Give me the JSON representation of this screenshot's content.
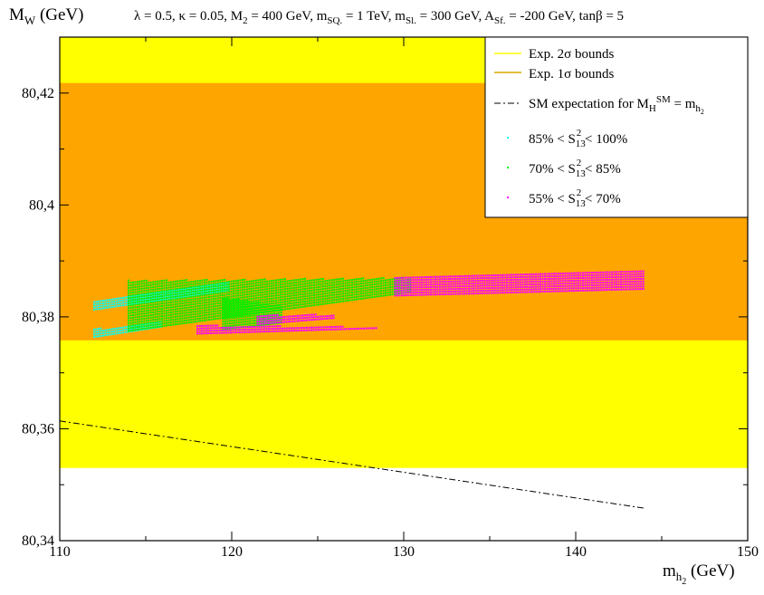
{
  "chart_data": {
    "type": "scatter",
    "title": "λ = 0.5, κ = 0.05, M₂ = 400 GeV, m_SQ. = 1 TeV, m_Sl. = 300 GeV, A_Sf. = -200 GeV, tanβ = 5",
    "title_parts": {
      "p1": "λ = 0.5, κ = 0.05, M",
      "s1": "2",
      "p2": " = 400 GeV, m",
      "s2": "SQ.",
      "p3": " = 1 TeV, m",
      "s3": "Sl.",
      "p4": " = 300 GeV, A",
      "s4": "Sf.",
      "p5": " = -200 GeV, tanβ = 5"
    },
    "xlabel": {
      "main": "m",
      "sub": "h",
      "subsub": "2",
      "unit": " (GeV)"
    },
    "ylabel": {
      "main": "M",
      "sub": "W",
      "unit": " (GeV)"
    },
    "xlim": [
      110,
      150
    ],
    "ylim": [
      80.34,
      80.43
    ],
    "xticks": [
      110,
      120,
      130,
      140,
      150
    ],
    "xtick_labels": [
      "110",
      "120",
      "130",
      "140",
      "150"
    ],
    "yticks": [
      80.34,
      80.36,
      80.38,
      80.4,
      80.42
    ],
    "ytick_labels": [
      "80,34",
      "80,36",
      "80,38",
      "80,4",
      "80,42"
    ],
    "grid": false,
    "legend_position": "top-right",
    "bands": [
      {
        "name": "Exp. 2σ bounds",
        "y_range": [
          80.353,
          80.43
        ],
        "color": "#ffff00"
      },
      {
        "name": "Exp. 1σ bounds",
        "y_range": [
          80.3758,
          80.4218
        ],
        "color": "#ffa500"
      }
    ],
    "sm_line": {
      "name": "SM expectation for M_H^SM = m_h2",
      "x": [
        110,
        144
      ],
      "y": [
        80.3614,
        80.3458
      ],
      "color": "#000000"
    },
    "series": [
      {
        "name": "85% < S13² < 100%",
        "color": "#00ffff",
        "regions": [
          {
            "x": [
              112,
              119.8
            ],
            "y_low": [
              80.3813,
              80.3848
            ],
            "y_high": [
              80.3828,
              80.3865
            ]
          },
          {
            "x": [
              112,
              116
            ],
            "y_low": [
              80.3764,
              80.3783
            ],
            "y_high": [
              80.3778,
              80.3792
            ]
          }
        ]
      },
      {
        "name": "70% < S13² < 85%",
        "color": "#00ee00",
        "regions": [
          {
            "x": [
              114,
              130.5
            ],
            "y_low": [
              80.3775,
              80.3845
            ],
            "y_high": [
              80.3865,
              80.387
            ]
          },
          {
            "x": [
              119.5,
              123
            ],
            "y_low": [
              80.3778,
              80.379
            ],
            "y_high": [
              80.3835,
              80.382
            ]
          }
        ]
      },
      {
        "name": "55% < S13² < 70%",
        "color": "#ff00ff",
        "regions": [
          {
            "x": [
              129.5,
              144
            ],
            "y_low": [
              80.3838,
              80.385
            ],
            "y_high": [
              80.3872,
              80.3882
            ]
          },
          {
            "x": [
              118,
              128.5
            ],
            "y_low": [
              80.377,
              80.378
            ],
            "y_high": [
              80.3785,
              80.3782
            ]
          },
          {
            "x": [
              121.5,
              126
            ],
            "y_low": [
              80.3787,
              80.3798
            ],
            "y_high": [
              80.3803,
              80.3805
            ]
          }
        ]
      }
    ],
    "legend": [
      {
        "kind": "line",
        "text": "Exp. 2σ bounds",
        "color": "#ffff00"
      },
      {
        "kind": "line",
        "text": "Exp. 1σ bounds",
        "color": "#d8a800"
      },
      {
        "kind": "dashdot",
        "text": "SM expectation for M_H^SM = m_h2",
        "color": "#000000",
        "parts": {
          "p1": "SM expectation for M",
          "sub1": "H",
          "sup1": "SM",
          "p2": " = m",
          "sub2": "h",
          "subsub2": "2"
        }
      },
      {
        "kind": "point",
        "text": "85% < S13² < 100%",
        "color": "#00ffff",
        "parts": {
          "p1": "85% < S",
          "sub": "13",
          "sup": "2",
          "p2": " < 100%"
        }
      },
      {
        "kind": "point",
        "text": "70% < S13² < 85%",
        "color": "#00ee00",
        "parts": {
          "p1": "70% < S",
          "sub": "13",
          "sup": "2",
          "p2": " < 85%"
        }
      },
      {
        "kind": "point",
        "text": "55% < S13² < 70%",
        "color": "#ff00ff",
        "parts": {
          "p1": "55% < S",
          "sub": "13",
          "sup": "2",
          "p2": " < 70%"
        }
      }
    ]
  }
}
